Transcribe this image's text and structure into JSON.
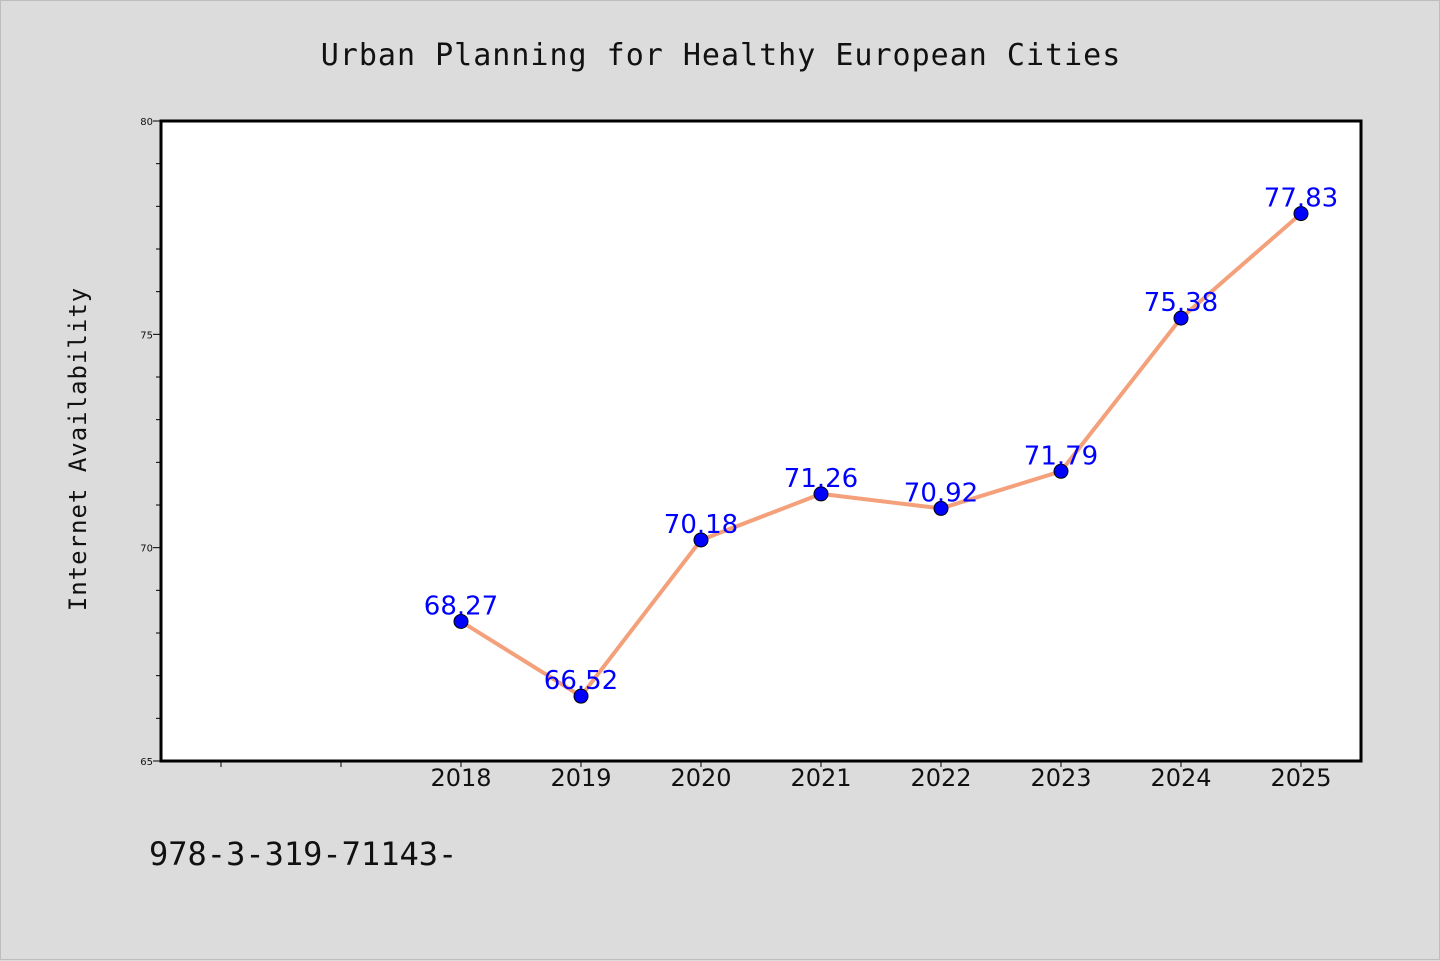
{
  "chart_data": {
    "type": "line",
    "title": "Urban Planning for Healthy European Cities",
    "xlabel": "",
    "ylabel": "Internet Availability",
    "categories": [
      "2018",
      "2019",
      "2020",
      "2021",
      "2022",
      "2023",
      "2024",
      "2025"
    ],
    "values": [
      68.27,
      66.52,
      70.18,
      71.26,
      70.92,
      71.79,
      75.38,
      77.83
    ],
    "data_labels": [
      "68.27",
      "66.52",
      "70.18",
      "71.26",
      "70.92",
      "71.79",
      "75.38",
      "77.83"
    ],
    "ylim": [
      65,
      80
    ],
    "yticks": [
      "65",
      "70",
      "75",
      "80"
    ],
    "grid": false,
    "line_color": "#f4a07a",
    "marker_color": "#0000ff",
    "label_color": "#0000ff"
  },
  "footer_text": "978-3-319-71143-"
}
